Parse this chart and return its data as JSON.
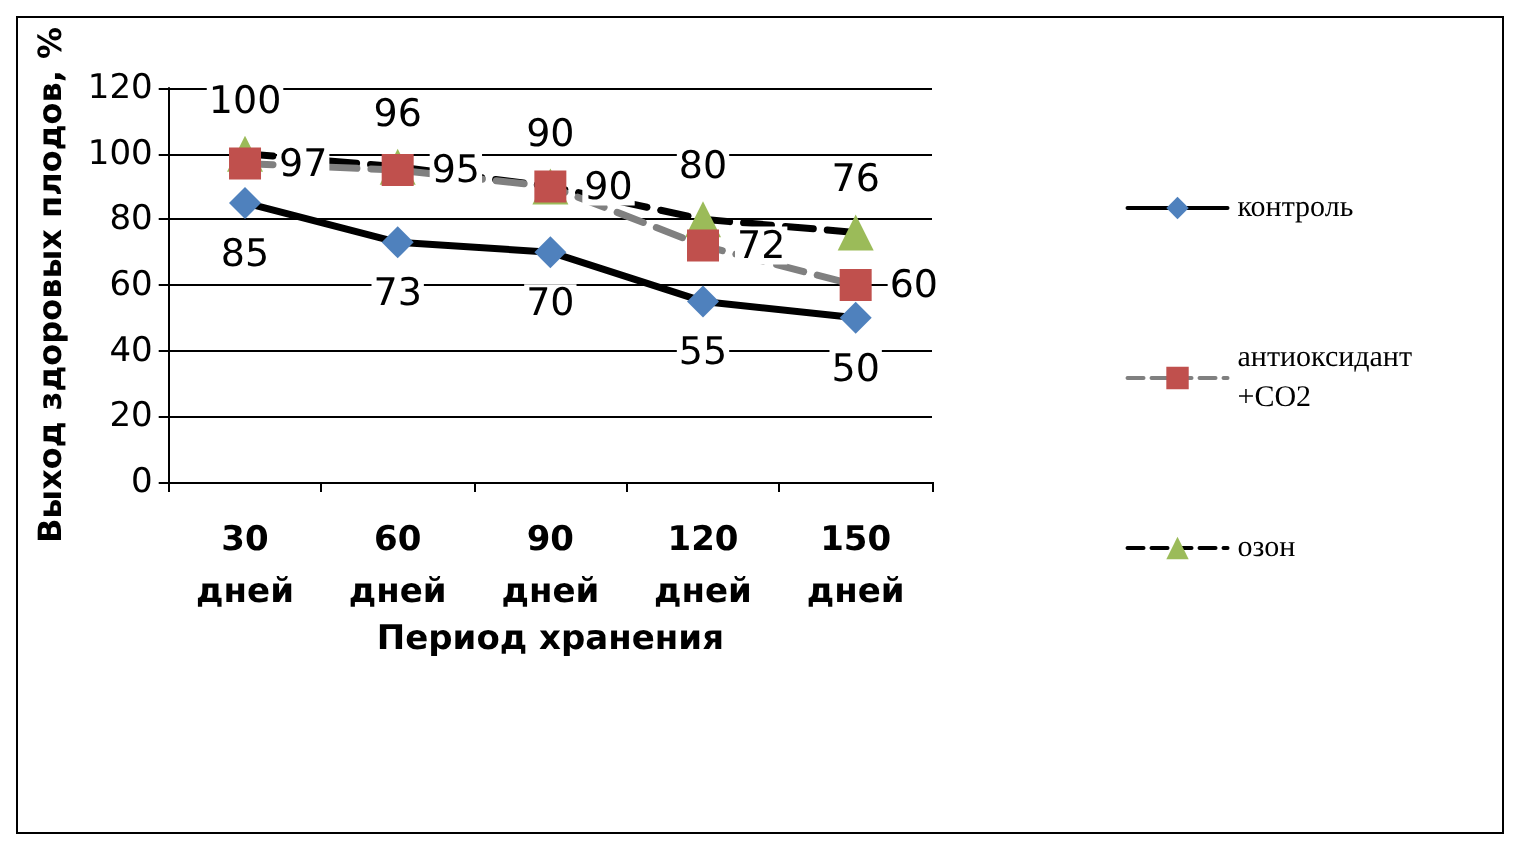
{
  "chart_data": {
    "type": "line",
    "xlabel": "Период хранения",
    "ylabel": "Выход здоровых плодов, %",
    "categories": [
      "30 дней",
      "60 дней",
      "90 дней",
      "120 дней",
      "150 дней"
    ],
    "series": [
      {
        "name": "контроль",
        "color": "#4f81bd",
        "marker": "diamond",
        "line_style": "solid",
        "values": [
          85,
          73,
          70,
          55,
          50
        ]
      },
      {
        "name": "антиоксидант +CO2",
        "color": "#c0504d",
        "marker": "square",
        "line_style": "dashed",
        "values": [
          97,
          95,
          90,
          72,
          60
        ]
      },
      {
        "name": "озон",
        "color": "#9bbb59",
        "marker": "triangle",
        "line_style": "dashed",
        "values": [
          100,
          96,
          90,
          80,
          76
        ]
      }
    ],
    "ylim": [
      0,
      120
    ],
    "yticks": [
      0,
      20,
      40,
      60,
      80,
      100,
      120
    ],
    "grid": "y",
    "legend": "right",
    "data_labels": true
  }
}
